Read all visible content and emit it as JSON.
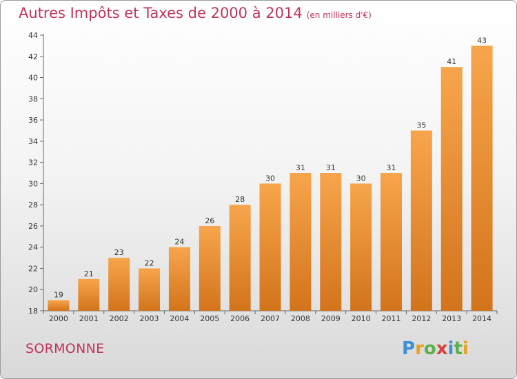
{
  "title": "Autres Impôts et Taxes de 2000 à 2014",
  "unit_note": "(en milliers d'€)",
  "commune": "SORMONNE",
  "logo": {
    "letters": [
      "P",
      "r",
      "o",
      "x",
      "i",
      "t",
      "i"
    ],
    "colors": [
      "#3d8fd8",
      "#e8a020",
      "#5cb04a",
      "#d94040",
      "#3d8fd8",
      "#5cb04a",
      "#e8a020"
    ]
  },
  "colors": {
    "bar_top": "#f7a54c",
    "bar_bottom": "#d2741c",
    "accent": "#c0355a"
  },
  "chart_data": {
    "type": "bar",
    "title": "Autres Impôts et Taxes de 2000 à 2014",
    "subtitle": "(en milliers d'€)",
    "categories": [
      "2000",
      "2001",
      "2002",
      "2003",
      "2004",
      "2005",
      "2006",
      "2007",
      "2008",
      "2009",
      "2010",
      "2011",
      "2012",
      "2013",
      "2014"
    ],
    "values": [
      19,
      21,
      23,
      22,
      24,
      26,
      28,
      30,
      31,
      31,
      30,
      31,
      35,
      41,
      43
    ],
    "ylim": [
      18,
      44
    ],
    "yticks": [
      18,
      20,
      22,
      24,
      26,
      28,
      30,
      32,
      34,
      36,
      38,
      40,
      42,
      44
    ],
    "grid": false,
    "legend": "none"
  }
}
